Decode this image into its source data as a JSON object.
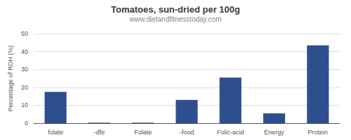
{
  "chart_data": {
    "type": "bar",
    "title": "Tomatoes, sun-dried per 100g",
    "subtitle": "www.dietandfitnesstoday.com",
    "ylabel": "Percentage of RDH (%)",
    "categories": [
      "folate",
      "-dfe",
      "Folate",
      "-food",
      "Folic-acid",
      "Energy",
      "Protein"
    ],
    "values": [
      17.5,
      0.3,
      0.3,
      13.0,
      25.5,
      5.5,
      43.5
    ],
    "color": "#2d4f8e",
    "ylim": [
      0,
      50
    ],
    "yticks": [
      0,
      10,
      20,
      30,
      40,
      50
    ],
    "grid": true
  }
}
